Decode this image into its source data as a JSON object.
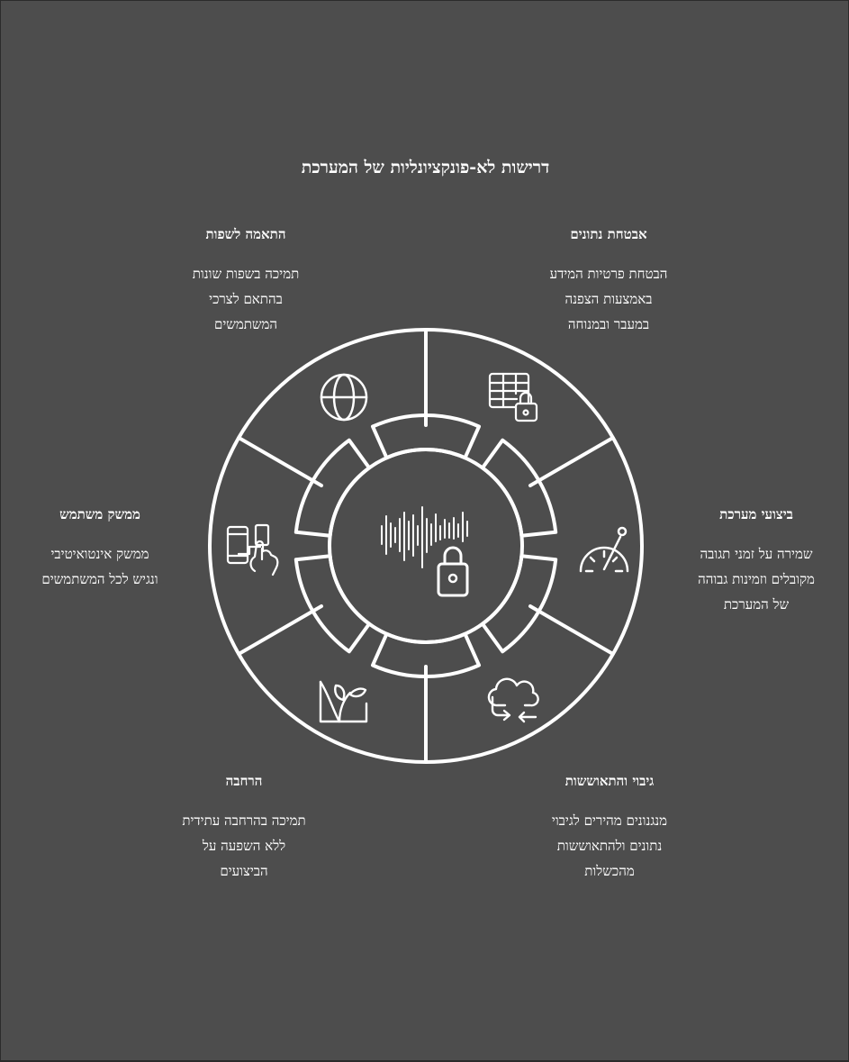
{
  "title": "דרישות לא-פונקציונליות של המערכת",
  "features": {
    "data_security": {
      "heading": "אבטחת נתונים",
      "lines": [
        "הבטחת פרטיות המידע",
        "באמצעות הצפנה",
        "במעבר ובמנוחה"
      ],
      "icon": "table-lock-icon"
    },
    "localization": {
      "heading": "התאמה לשפות",
      "lines": [
        "תמיכה בשפות שונות",
        "בהתאם לצרכי",
        "המשתמשים"
      ],
      "icon": "globe-icon"
    },
    "performance": {
      "heading": "ביצועי מערכת",
      "lines": [
        "שמירה על זמני תגובה",
        "מקובלים וזמינות גבוהה",
        "של המערכת"
      ],
      "icon": "speedometer-icon"
    },
    "user_interface": {
      "heading": "ממשק משתמש",
      "lines": [
        "ממשק אינטואיטיבי",
        "ונגיש לכל המשתמשים"
      ],
      "icon": "touch-devices-icon"
    },
    "scalability": {
      "heading": "הרחבה",
      "lines": [
        "תמיכה בהרחבה עתידית",
        "ללא השפעה על",
        "הביצועים"
      ],
      "icon": "growth-plant-icon"
    },
    "backup_recovery": {
      "heading": "גיבוי והתאוששות",
      "lines": [
        "מנגנונים מהירים לגיבוי",
        "נתונים ולהתאוששות",
        "מהכשלות"
      ],
      "icon": "cloud-sync-icon"
    }
  },
  "center_icon": "audio-lock-icon",
  "colors": {
    "background": "#4d4d4d",
    "stroke": "#ffffff",
    "outer_frame": "#2b2b2b"
  }
}
